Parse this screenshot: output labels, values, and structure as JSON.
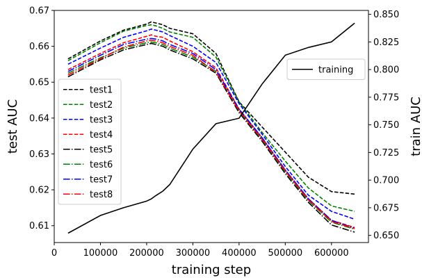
{
  "chart_data": {
    "type": "line",
    "xlabel": "training step",
    "ylabel_left": "test AUC",
    "ylabel_right": "train AUC",
    "xlim": [
      0,
      680000
    ],
    "ylim_left": [
      0.6053,
      0.67
    ],
    "ylim_right": [
      0.6435,
      0.8535
    ],
    "x_ticks": [
      0,
      100000,
      200000,
      300000,
      400000,
      500000,
      600000
    ],
    "x_tick_labels": [
      "0",
      "100000",
      "200000",
      "300000",
      "400000",
      "500000",
      "600000"
    ],
    "y_left_ticks": [
      0.61,
      0.62,
      0.63,
      0.64,
      0.65,
      0.66,
      0.67
    ],
    "y_left_tick_labels": [
      "0.61",
      "0.62",
      "0.63",
      "0.64",
      "0.65",
      "0.66",
      "0.67"
    ],
    "y_right_ticks": [
      0.65,
      0.675,
      0.7,
      0.725,
      0.75,
      0.775,
      0.8,
      0.825,
      0.85
    ],
    "y_right_tick_labels": [
      "0.650",
      "0.675",
      "0.700",
      "0.725",
      "0.750",
      "0.775",
      "0.800",
      "0.825",
      "0.850"
    ],
    "x": [
      30000,
      100000,
      150000,
      200000,
      210000,
      220000,
      235000,
      250000,
      300000,
      350000,
      400000,
      450000,
      500000,
      550000,
      600000,
      650000
    ],
    "series": [
      {
        "name": "test1",
        "axis": "left",
        "color": "#000000",
        "dash": "dashed",
        "values": [
          0.6565,
          0.6615,
          0.6645,
          0.6662,
          0.6668,
          0.6665,
          0.666,
          0.665,
          0.6635,
          0.658,
          0.6445,
          0.6375,
          0.6305,
          0.6235,
          0.6195,
          0.6188
        ]
      },
      {
        "name": "test2",
        "axis": "left",
        "color": "#008000",
        "dash": "dashed",
        "values": [
          0.656,
          0.661,
          0.6642,
          0.6658,
          0.666,
          0.6657,
          0.665,
          0.664,
          0.6625,
          0.657,
          0.6445,
          0.636,
          0.628,
          0.6205,
          0.6155,
          0.614
        ]
      },
      {
        "name": "test3",
        "axis": "left",
        "color": "#0000ff",
        "dash": "dashed",
        "values": [
          0.655,
          0.6595,
          0.6625,
          0.6643,
          0.6648,
          0.6645,
          0.664,
          0.663,
          0.66,
          0.6555,
          0.644,
          0.6355,
          0.6265,
          0.6185,
          0.614,
          0.6118
        ]
      },
      {
        "name": "test4",
        "axis": "left",
        "color": "#ff0000",
        "dash": "dashed",
        "values": [
          0.6535,
          0.658,
          0.661,
          0.6628,
          0.6632,
          0.6628,
          0.6625,
          0.6615,
          0.6585,
          0.654,
          0.6425,
          0.6345,
          0.6255,
          0.6175,
          0.6115,
          0.6095
        ]
      },
      {
        "name": "test5",
        "axis": "left",
        "color": "#000000",
        "dash": "dashdot",
        "values": [
          0.6515,
          0.6562,
          0.659,
          0.6605,
          0.6608,
          0.6605,
          0.66,
          0.659,
          0.6565,
          0.6525,
          0.6415,
          0.6335,
          0.6245,
          0.6165,
          0.6102,
          0.6082
        ]
      },
      {
        "name": "test6",
        "axis": "left",
        "color": "#008000",
        "dash": "dashdot",
        "values": [
          0.6525,
          0.6568,
          0.6595,
          0.661,
          0.6612,
          0.661,
          0.6605,
          0.6595,
          0.657,
          0.653,
          0.642,
          0.634,
          0.625,
          0.617,
          0.611,
          0.609
        ]
      },
      {
        "name": "test7",
        "axis": "left",
        "color": "#0000ff",
        "dash": "dashdot",
        "values": [
          0.653,
          0.6575,
          0.6605,
          0.662,
          0.6622,
          0.662,
          0.6615,
          0.6605,
          0.658,
          0.6535,
          0.6425,
          0.6345,
          0.6255,
          0.6175,
          0.6115,
          0.6093
        ]
      },
      {
        "name": "test8",
        "axis": "left",
        "color": "#ff0000",
        "dash": "dashdot",
        "values": [
          0.652,
          0.6565,
          0.6598,
          0.6615,
          0.6617,
          0.6615,
          0.661,
          0.66,
          0.6575,
          0.6528,
          0.642,
          0.634,
          0.6252,
          0.6172,
          0.6112,
          0.6092
        ]
      },
      {
        "name": "training",
        "axis": "right",
        "color": "#000000",
        "dash": "solid",
        "values": [
          0.652,
          0.668,
          0.675,
          0.681,
          0.683,
          0.686,
          0.69,
          0.696,
          0.728,
          0.751,
          0.756,
          0.787,
          0.813,
          0.82,
          0.825,
          0.842
        ]
      }
    ],
    "legend_left": {
      "placement": "center-left",
      "entries": [
        "test1",
        "test2",
        "test3",
        "test4",
        "test5",
        "test6",
        "test7",
        "test8"
      ]
    },
    "legend_right": {
      "placement": "upper-right",
      "entries": [
        "training"
      ]
    },
    "grid": false
  }
}
